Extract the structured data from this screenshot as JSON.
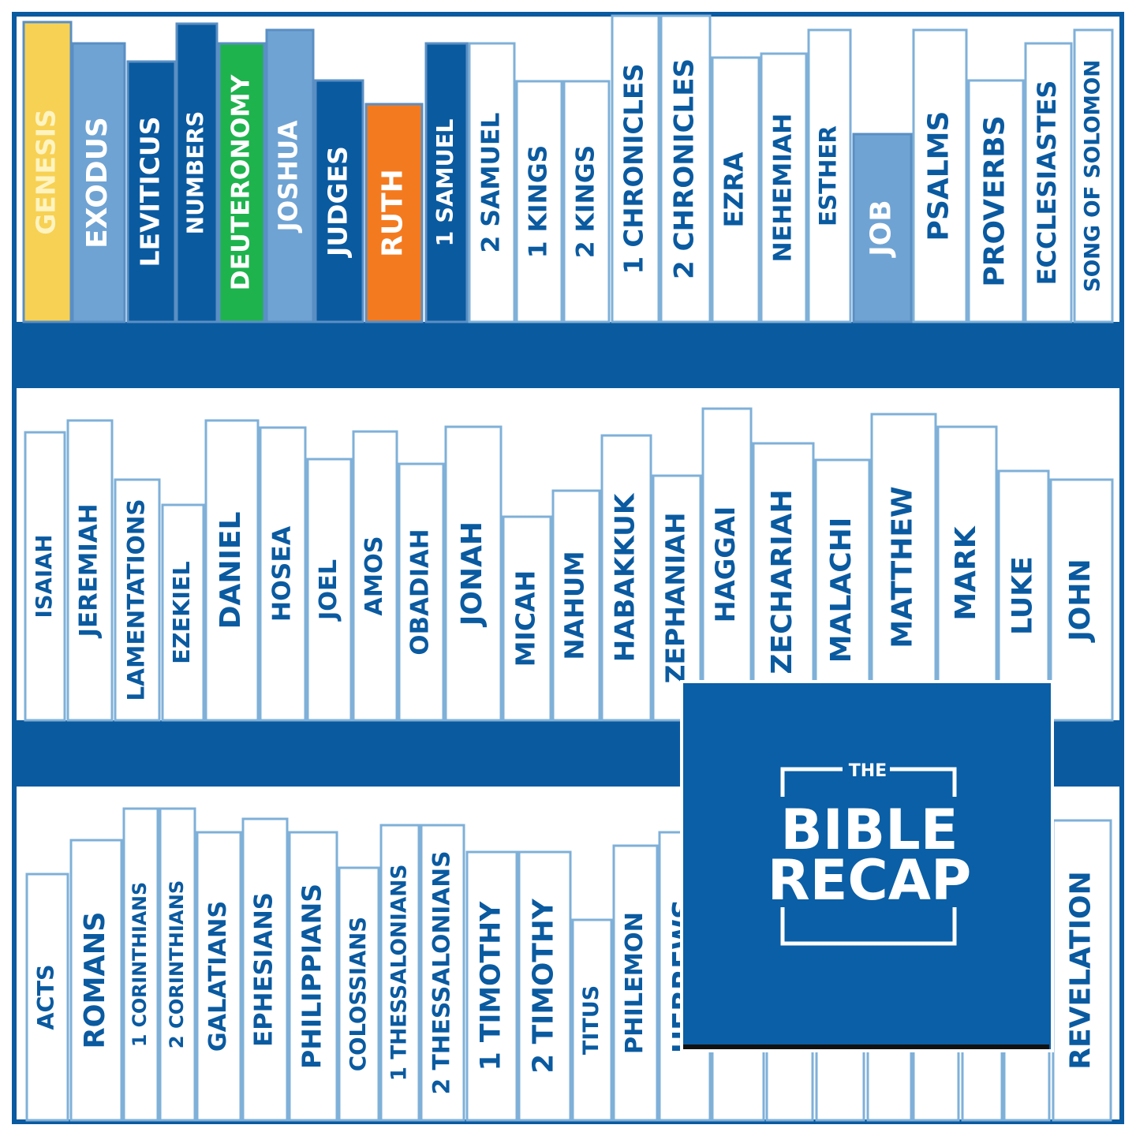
{
  "shelves": [
    {
      "books": [
        "GENESIS",
        "EXODUS",
        "LEVITICUS",
        "NUMBERS",
        "DEUTERONOMY",
        "JOSHUA",
        "JUDGES",
        "RUTH",
        "1 SAMUEL",
        "2 SAMUEL",
        "1 KINGS",
        "2 KINGS",
        "1 CHRONICLES",
        "2 CHRONICLES",
        "EZRA",
        "NEHEMIAH",
        "ESTHER",
        "JOB",
        "PSALMS",
        "PROVERBS",
        "ECCLESIASTES",
        "SONG OF SOLOMON"
      ]
    },
    {
      "books": [
        "ISAIAH",
        "JEREMIAH",
        "LAMENTATIONS",
        "EZEKIEL",
        "DANIEL",
        "HOSEA",
        "JOEL",
        "AMOS",
        "OBADIAH",
        "JONAH",
        "MICAH",
        "NAHUM",
        "HABAKKUK",
        "ZEPHANIAH",
        "HAGGAI",
        "ZECHARIAH",
        "MALACHI",
        "MATTHEW",
        "MARK",
        "LUKE",
        "JOHN"
      ]
    },
    {
      "books": [
        "ACTS",
        "ROMANS",
        "1 CORINTHIANS",
        "2 CORINTHIANS",
        "GALATIANS",
        "EPHESIANS",
        "PHILIPPIANS",
        "COLOSSIANS",
        "1 THESSALONIANS",
        "2 THESSALONIANS",
        "1 TIMOTHY",
        "2 TIMOTHY",
        "TITUS",
        "PHILEMON",
        "HEBREWS",
        "REVELATION"
      ]
    }
  ],
  "logo": {
    "top": "THE",
    "line1": "BIBLE",
    "line2": "RECAP"
  }
}
